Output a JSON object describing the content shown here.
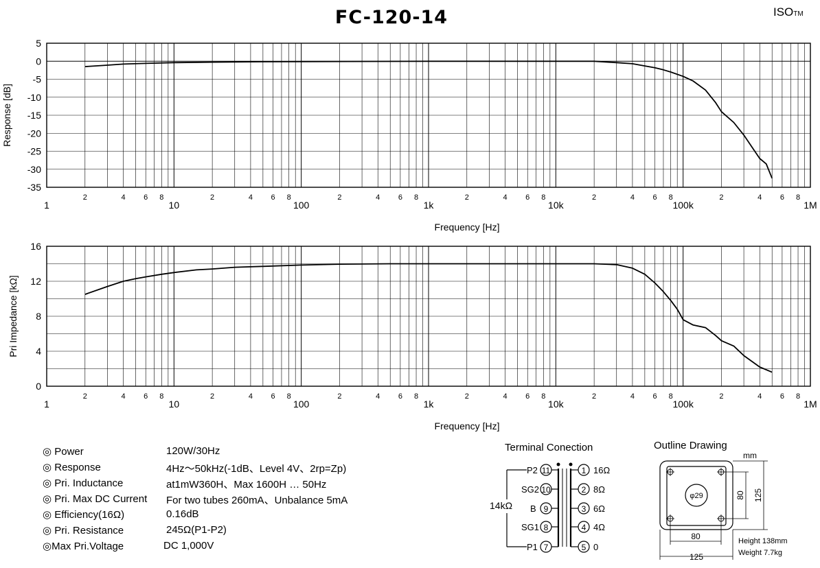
{
  "header": {
    "title": "FC-120-14",
    "brand": "ISO",
    "brand_tm": "TM"
  },
  "chart_data": [
    {
      "type": "line",
      "ylabel": "Response [dB]",
      "xlabel": "Frequency [Hz]",
      "xscale": "log",
      "xlim": [
        1,
        1000000
      ],
      "ylim": [
        -35,
        5
      ],
      "yticks": [
        5,
        0,
        -5,
        -10,
        -15,
        -20,
        -25,
        -30,
        -35
      ],
      "xtick_major_labels": [
        "1",
        "10",
        "100",
        "1k",
        "10k",
        "100k",
        "1M"
      ],
      "xtick_minor_labels": [
        "2",
        "4",
        "6",
        "8"
      ],
      "grid": true,
      "series": [
        {
          "x": [
            2,
            3,
            4,
            6,
            10,
            20,
            50,
            100,
            1000,
            10000,
            20000,
            30000,
            40000,
            50000,
            60000,
            70000,
            80000,
            100000,
            120000,
            150000,
            180000,
            200000,
            250000,
            300000,
            350000,
            400000,
            450000,
            500000
          ],
          "y": [
            -1.5,
            -1.1,
            -0.8,
            -0.6,
            -0.4,
            -0.25,
            -0.15,
            -0.1,
            0,
            0,
            0,
            -0.4,
            -0.7,
            -1.3,
            -1.8,
            -2.4,
            -3.0,
            -4.2,
            -5.5,
            -8.0,
            -11.5,
            -14.0,
            -17.0,
            -20.5,
            -24.0,
            -27.0,
            -28.5,
            -32.5
          ]
        }
      ]
    },
    {
      "type": "line",
      "ylabel": "Pri Impedance [kΩ]",
      "xlabel": "Frequency [Hz]",
      "xscale": "log",
      "xlim": [
        1,
        1000000
      ],
      "ylim": [
        0,
        16
      ],
      "yticks": [
        16,
        12,
        8,
        4,
        0
      ],
      "xtick_major_labels": [
        "1",
        "10",
        "100",
        "1k",
        "10k",
        "100k",
        "1M"
      ],
      "xtick_minor_labels": [
        "2",
        "4",
        "6",
        "8"
      ],
      "grid": true,
      "series": [
        {
          "x": [
            2,
            3,
            4,
            5,
            6,
            8,
            10,
            15,
            20,
            30,
            50,
            100,
            200,
            500,
            1000,
            10000,
            20000,
            30000,
            40000,
            50000,
            60000,
            70000,
            80000,
            90000,
            100000,
            120000,
            150000,
            180000,
            200000,
            250000,
            300000,
            400000,
            500000
          ],
          "y": [
            10.5,
            11.4,
            12.0,
            12.3,
            12.5,
            12.8,
            13.0,
            13.3,
            13.4,
            13.6,
            13.7,
            13.85,
            13.95,
            14.0,
            14.0,
            14.0,
            14.0,
            13.9,
            13.5,
            12.8,
            11.8,
            10.8,
            9.8,
            8.8,
            7.6,
            7.0,
            6.7,
            5.8,
            5.2,
            4.6,
            3.5,
            2.2,
            1.6
          ]
        }
      ]
    }
  ],
  "specs": [
    {
      "label": "◎ Power",
      "value": "120W/30Hz"
    },
    {
      "label": "◎ Response",
      "value": "4Hz～50kHz(-1dB、Level 4V、2rp=Zp)"
    },
    {
      "label": "◎ Pri. Inductance",
      "value": "at1mW360H、Max 1600H … 50Hz"
    },
    {
      "label": "◎ Pri. Max DC Current",
      "value": "For two tubes 260mA、Unbalance 5mA"
    },
    {
      "label": "◎ Efficiency(16Ω)",
      "value": "0.16dB"
    },
    {
      "label": "◎ Pri. Resistance",
      "value": "245Ω(P1-P2)"
    },
    {
      "label": "◎Max Pri.Voltage",
      "value": "DC 1,000V"
    }
  ],
  "terminal": {
    "title": "Terminal Conection",
    "impedance": "14kΩ",
    "primary": [
      {
        "name": "P2",
        "pin": "11"
      },
      {
        "name": "SG2",
        "pin": "10"
      },
      {
        "name": "B",
        "pin": "9"
      },
      {
        "name": "SG1",
        "pin": "8"
      },
      {
        "name": "P1",
        "pin": "7"
      }
    ],
    "secondary": [
      {
        "pin": "1",
        "value": "16Ω"
      },
      {
        "pin": "2",
        "value": "8Ω"
      },
      {
        "pin": "3",
        "value": "6Ω"
      },
      {
        "pin": "4",
        "value": "4Ω"
      },
      {
        "pin": "5",
        "value": "0"
      }
    ]
  },
  "outline": {
    "title": "Outline Drawing",
    "unit": "mm",
    "center_dim": "φ29",
    "dim_inner_h": "80",
    "dim_outer_h": "125",
    "dim_inner_w": "80",
    "dim_outer_w": "125",
    "height": "Height 138mm",
    "weight": "Weight 7.7kg"
  },
  "colors": {
    "line": "#000000",
    "grid": "#000000",
    "background": "#ffffff"
  }
}
